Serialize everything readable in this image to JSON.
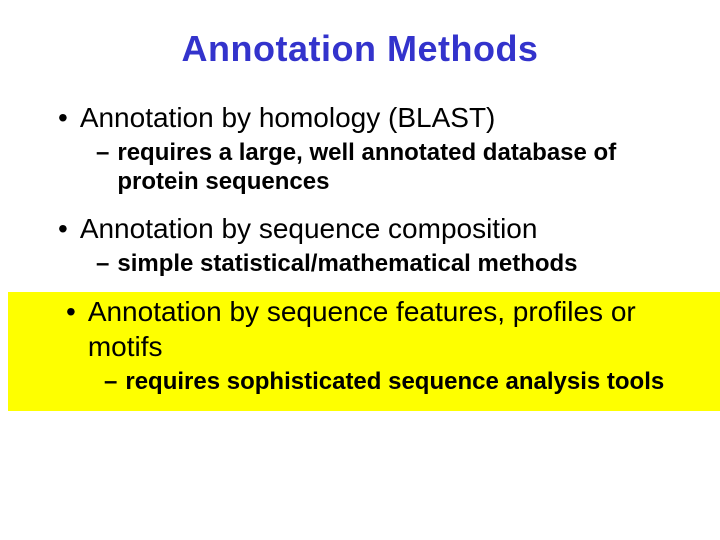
{
  "title": {
    "text": "Annotation Methods",
    "color": "#3333cc",
    "fontsize": 36,
    "weight": "bold"
  },
  "bullets": [
    {
      "main": "Annotation by homology (BLAST)",
      "sub": "requires a large, well annotated database of protein sequences",
      "highlighted": false
    },
    {
      "main": "Annotation by sequence composition",
      "sub": "simple statistical/mathematical methods",
      "highlighted": false
    },
    {
      "main": "Annotation by sequence features, profiles or motifs",
      "sub": "requires sophisticated sequence analysis tools",
      "highlighted": true
    }
  ],
  "styling": {
    "background_color": "#ffffff",
    "highlight_color": "#feff00",
    "main_bullet_fontsize": 28,
    "sub_bullet_fontsize": 24,
    "sub_bullet_weight": "bold",
    "text_color": "#000000",
    "font_family": "Arial"
  }
}
